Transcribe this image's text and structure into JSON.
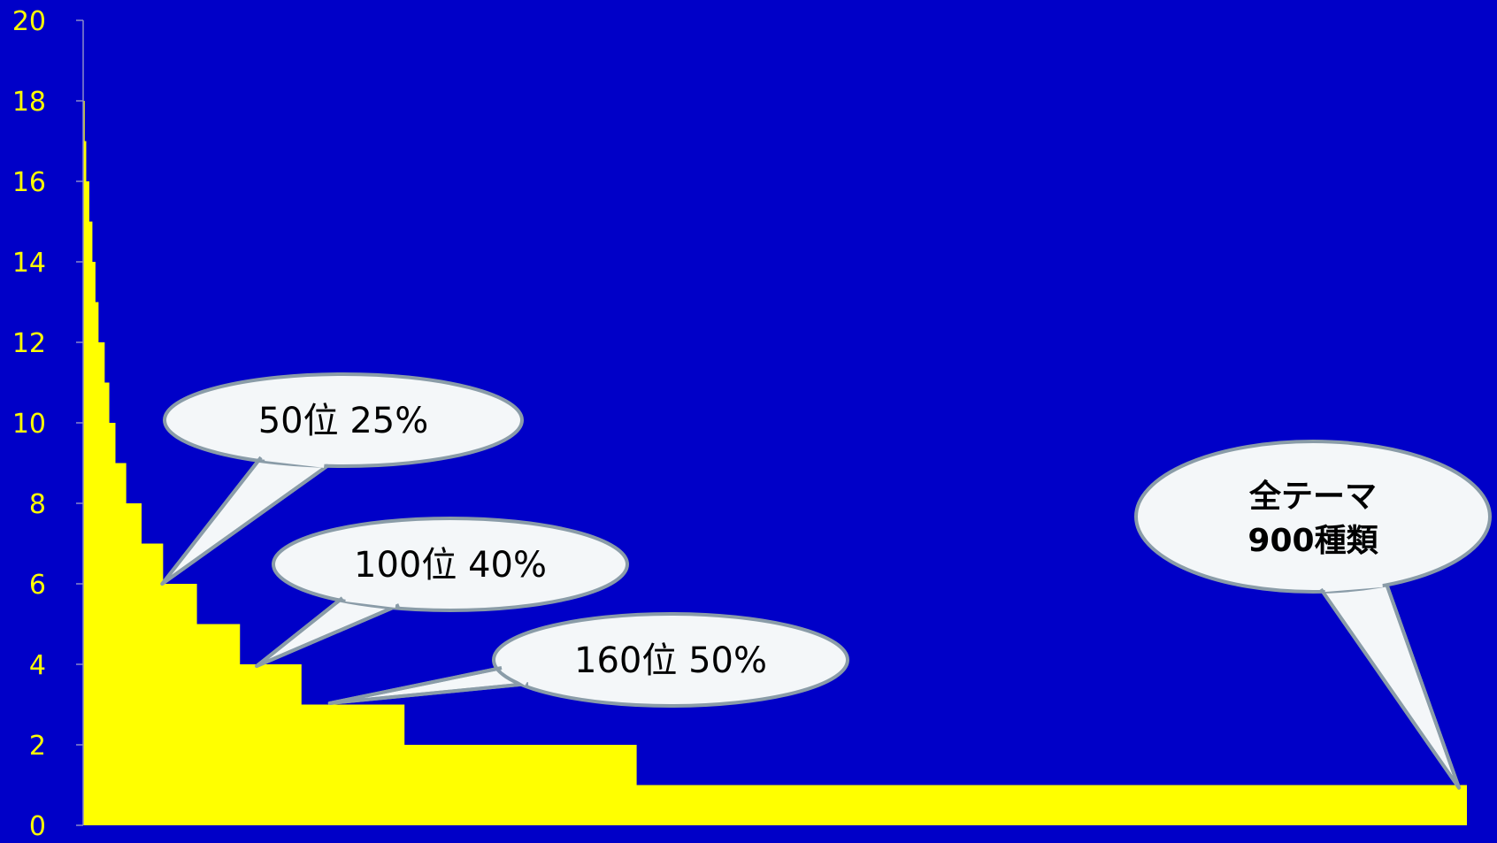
{
  "colors": {
    "background": "#0000c8",
    "area_fill": "#ffff00",
    "tick_text": "#ffff00",
    "callout_fill": "#f4f7f9",
    "callout_stroke": "#8a9ca8"
  },
  "chart_data": {
    "type": "area",
    "title": "",
    "xlabel": "",
    "ylabel": "",
    "ylim": [
      0,
      20
    ],
    "xlim": [
      0,
      900
    ],
    "yticks": [
      "0",
      "2",
      "4",
      "6",
      "8",
      "10",
      "12",
      "14",
      "16",
      "18",
      "20"
    ],
    "x": [
      0,
      1,
      2,
      4,
      6,
      8,
      10,
      14,
      17,
      21,
      28,
      38,
      52,
      74,
      102,
      142,
      209,
      360,
      900
    ],
    "y": [
      18,
      17,
      16,
      15,
      14,
      13,
      12,
      11,
      10,
      9,
      8,
      7,
      6,
      5,
      4,
      3,
      2,
      1,
      1
    ],
    "annotations": [
      {
        "id": "a50",
        "text": "50位 25%",
        "x": 52,
        "y": 6
      },
      {
        "id": "a100",
        "text": "100位 40%",
        "x": 114,
        "y": 4
      },
      {
        "id": "a160",
        "text": "160位 50%",
        "x": 165,
        "y": 3.1
      },
      {
        "id": "aall",
        "lines": [
          "全テーマ",
          "900種類"
        ],
        "x": 900,
        "y": 0.8
      }
    ]
  }
}
